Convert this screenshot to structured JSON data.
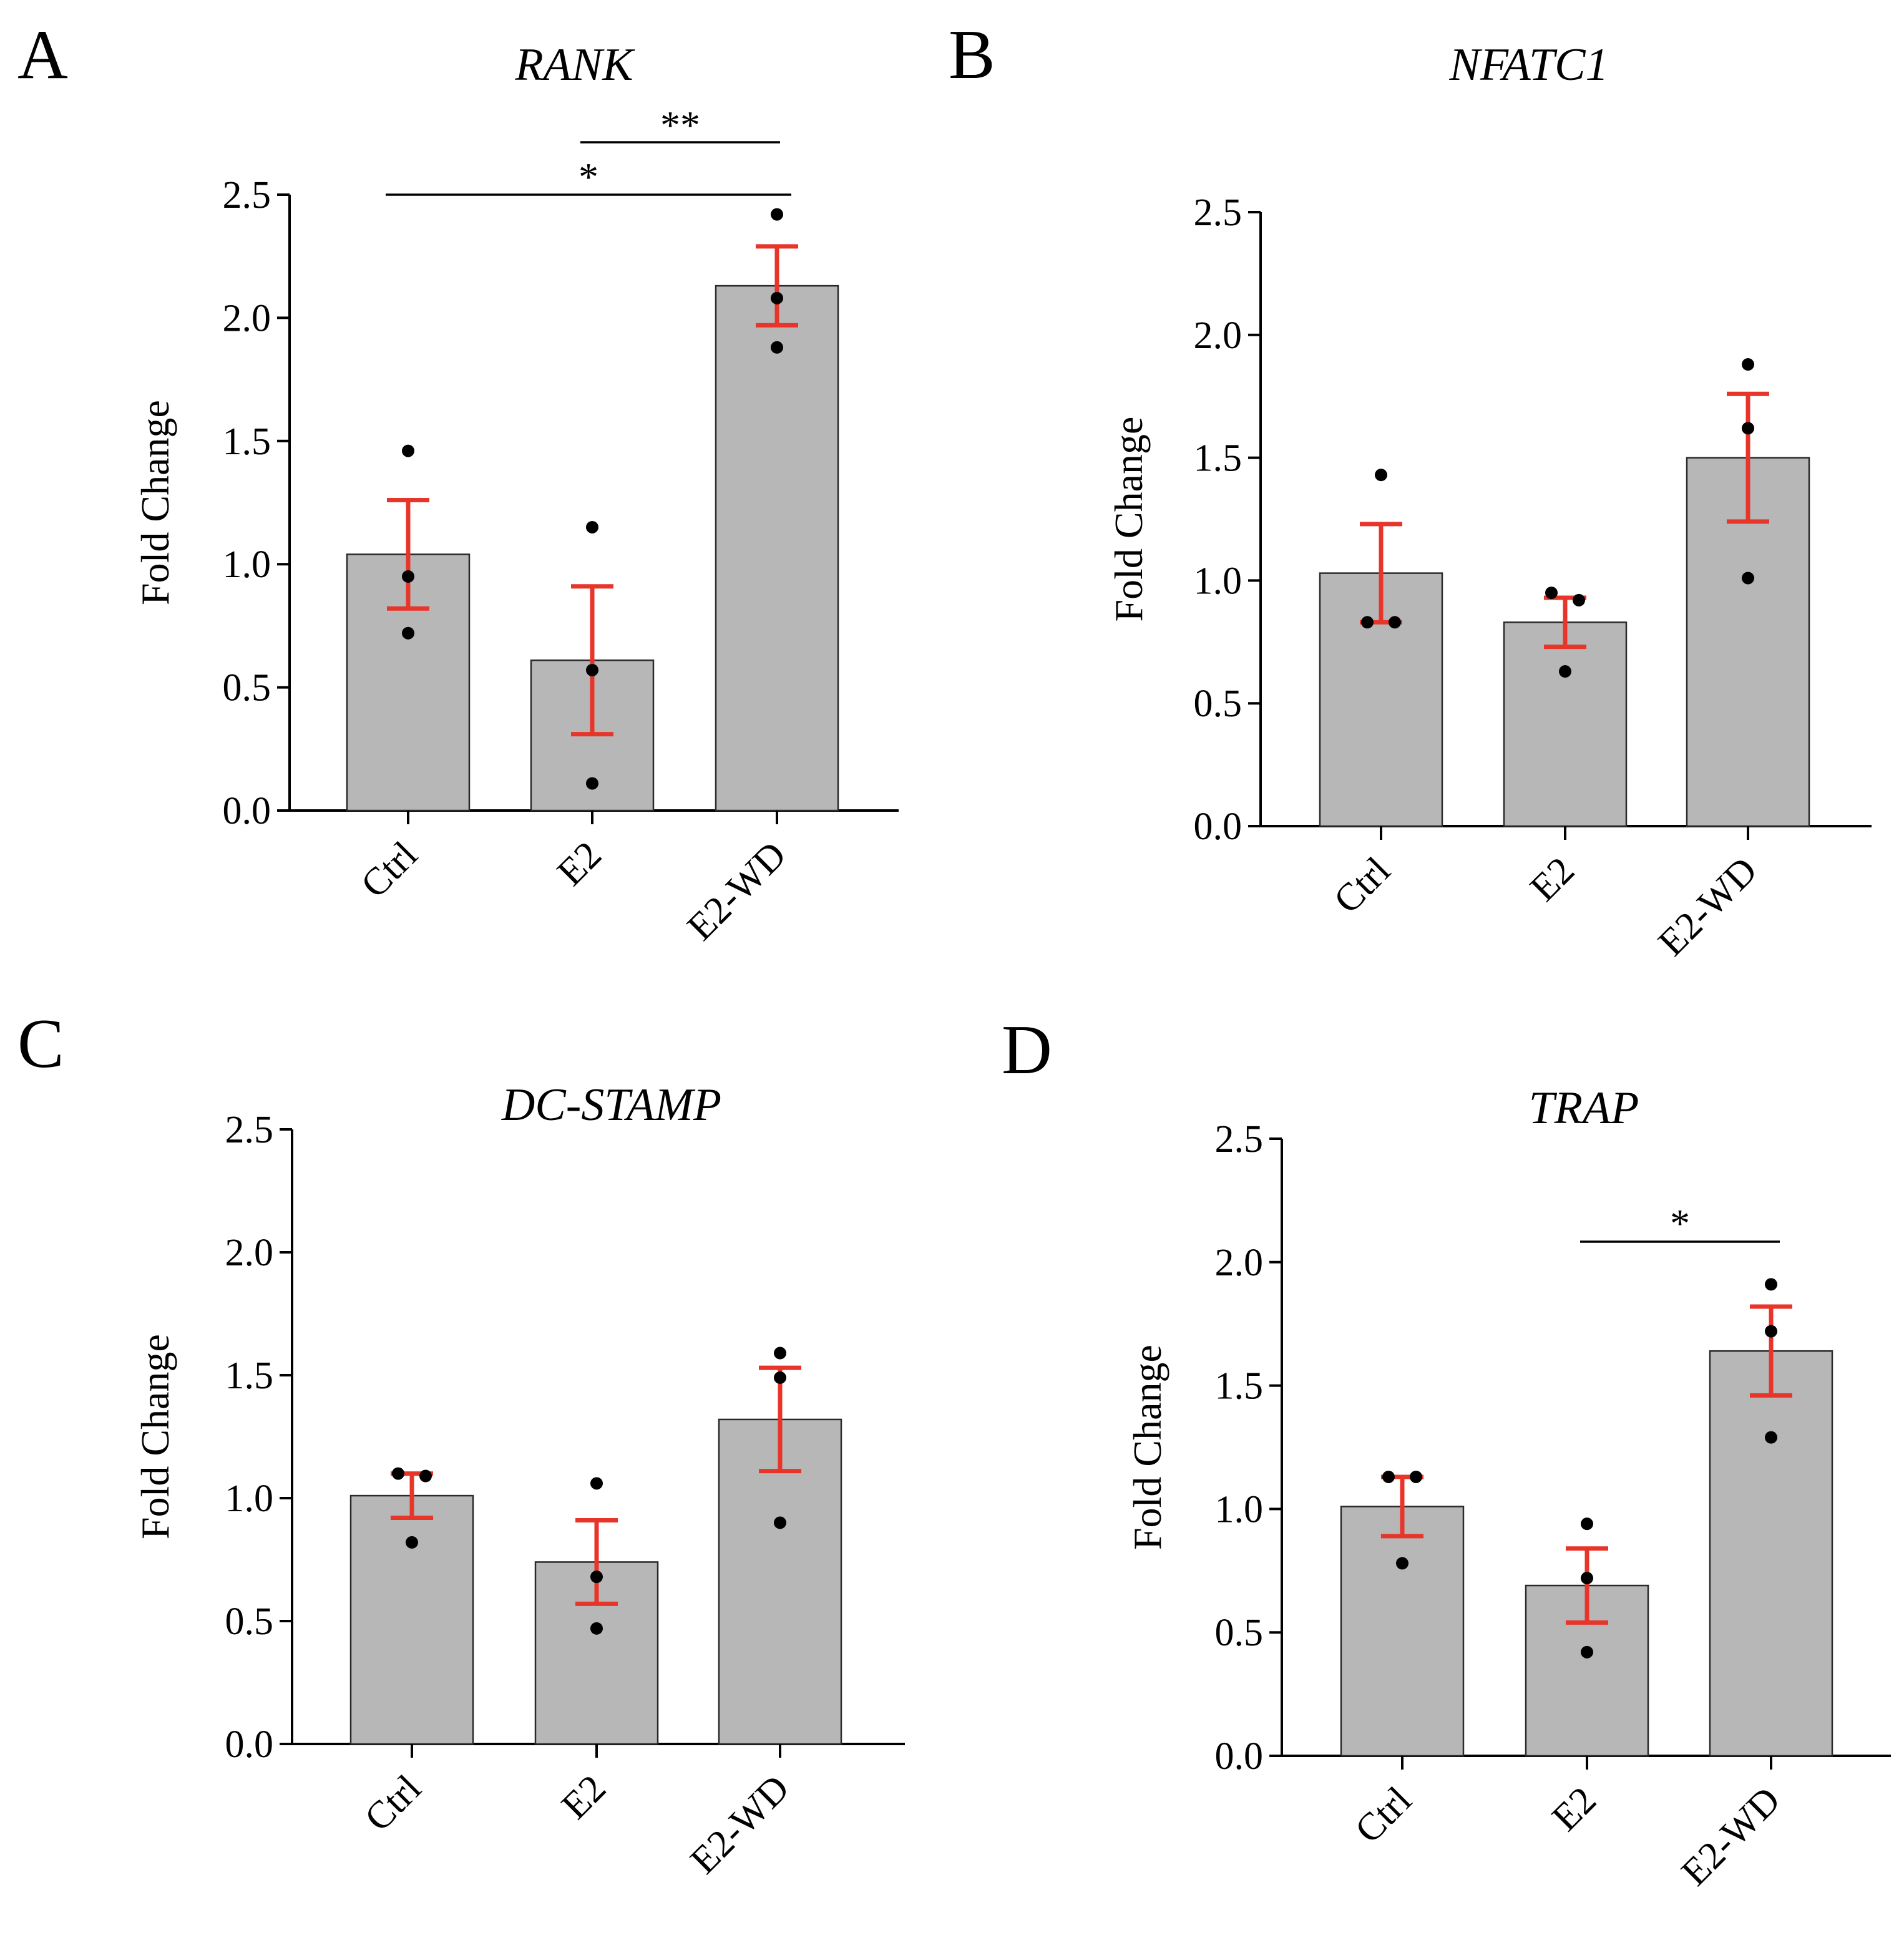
{
  "chart_data": [
    {
      "type": "bar",
      "panel": "A",
      "title": "RANK",
      "ylabel": "Fold Change",
      "ylim": [
        0,
        2.5
      ],
      "yticks": [
        "0.0",
        "0.5",
        "1.0",
        "1.5",
        "2.0",
        "2.5"
      ],
      "categories": [
        "Ctrl",
        "E2",
        "E2-WD"
      ],
      "values": [
        1.04,
        0.61,
        2.13
      ],
      "error": [
        0.22,
        0.3,
        0.16
      ],
      "points": [
        [
          1.46,
          0.95,
          0.72
        ],
        [
          1.15,
          0.57,
          0.11
        ],
        [
          2.42,
          2.08,
          1.88
        ]
      ],
      "significance": [
        {
          "from": "E2",
          "to": "E2-WD",
          "label": "**"
        },
        {
          "from": "Ctrl",
          "to": "E2-WD",
          "label": "*"
        }
      ]
    },
    {
      "type": "bar",
      "panel": "B",
      "title": "NFATC1",
      "ylabel": "Fold Change",
      "ylim": [
        0,
        2.5
      ],
      "yticks": [
        "0.0",
        "0.5",
        "1.0",
        "1.5",
        "2.0",
        "2.5"
      ],
      "categories": [
        "Ctrl",
        "E2",
        "E2-WD"
      ],
      "values": [
        1.03,
        0.83,
        1.5
      ],
      "error": [
        0.2,
        0.1,
        0.26
      ],
      "points": [
        [
          1.43,
          0.83,
          0.83
        ],
        [
          0.95,
          0.92,
          0.63
        ],
        [
          1.88,
          1.62,
          1.01
        ]
      ],
      "significance": []
    },
    {
      "type": "bar",
      "panel": "C",
      "title": "DC-STAMP",
      "ylabel": "Fold Change",
      "ylim": [
        0,
        2.5
      ],
      "yticks": [
        "0.0",
        "0.5",
        "1.0",
        "1.5",
        "2.0",
        "2.5"
      ],
      "categories": [
        "Ctrl",
        "E2",
        "E2-WD"
      ],
      "values": [
        1.01,
        0.74,
        1.32
      ],
      "error": [
        0.09,
        0.17,
        0.21
      ],
      "points": [
        [
          1.1,
          1.09,
          0.82
        ],
        [
          1.06,
          0.68,
          0.47
        ],
        [
          1.59,
          1.49,
          0.9
        ]
      ],
      "significance": []
    },
    {
      "type": "bar",
      "panel": "D",
      "title": "TRAP",
      "ylabel": "Fold Change",
      "ylim": [
        0,
        2.5
      ],
      "yticks": [
        "0.0",
        "0.5",
        "1.0",
        "1.5",
        "2.0",
        "2.5"
      ],
      "categories": [
        "Ctrl",
        "E2",
        "E2-WD"
      ],
      "values": [
        1.01,
        0.69,
        1.64
      ],
      "error": [
        0.12,
        0.15,
        0.18
      ],
      "points": [
        [
          1.13,
          1.13,
          0.78
        ],
        [
          0.94,
          0.72,
          0.42
        ],
        [
          1.91,
          1.72,
          1.29
        ]
      ],
      "significance": [
        {
          "from": "E2",
          "to": "E2-WD",
          "label": "*"
        }
      ]
    }
  ]
}
